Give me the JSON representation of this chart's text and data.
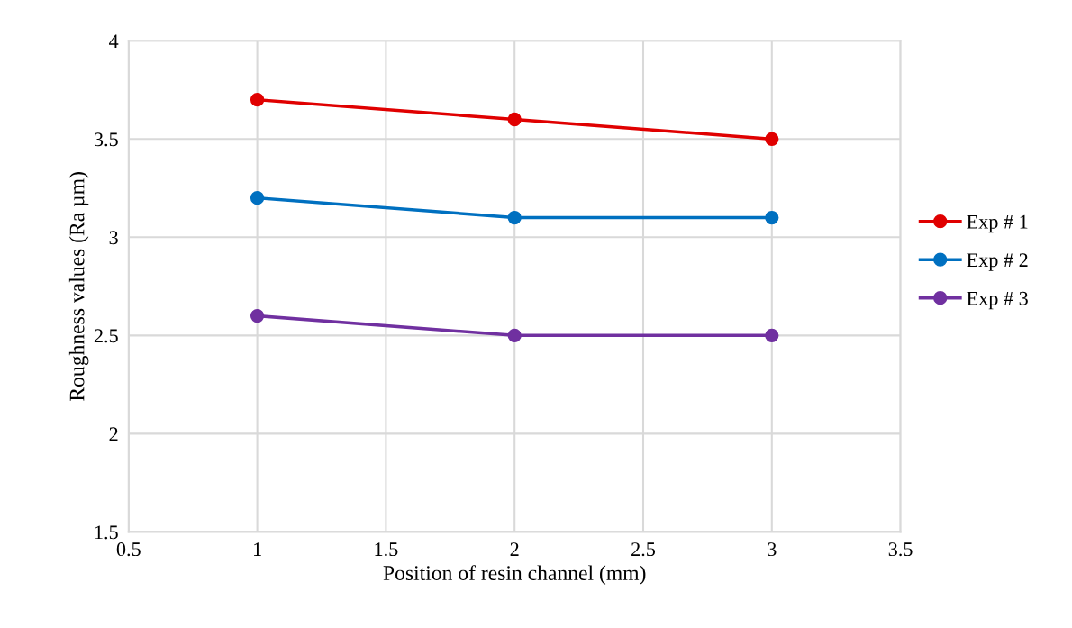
{
  "chart_data": {
    "type": "line",
    "xlabel": "Position of resin channel (mm)",
    "ylabel": "Roughness values (Ra µm)",
    "x": [
      1,
      2,
      3
    ],
    "series": [
      {
        "name": "Exp # 1",
        "color": "#e00000",
        "values": [
          3.7,
          3.6,
          3.5
        ]
      },
      {
        "name": "Exp # 2",
        "color": "#0070c0",
        "values": [
          3.2,
          3.1,
          3.1
        ]
      },
      {
        "name": "Exp # 3",
        "color": "#7030a0",
        "values": [
          2.6,
          2.5,
          2.5
        ]
      }
    ],
    "xlim": [
      0.5,
      3.5
    ],
    "xticks": [
      0.5,
      1,
      1.5,
      2,
      2.5,
      3,
      3.5
    ],
    "ylim": [
      1.5,
      4
    ],
    "yticks": [
      1.5,
      2,
      2.5,
      3,
      3.5,
      4
    ],
    "grid": true,
    "legend": "right",
    "marker": "circle",
    "line_style": "solid"
  }
}
